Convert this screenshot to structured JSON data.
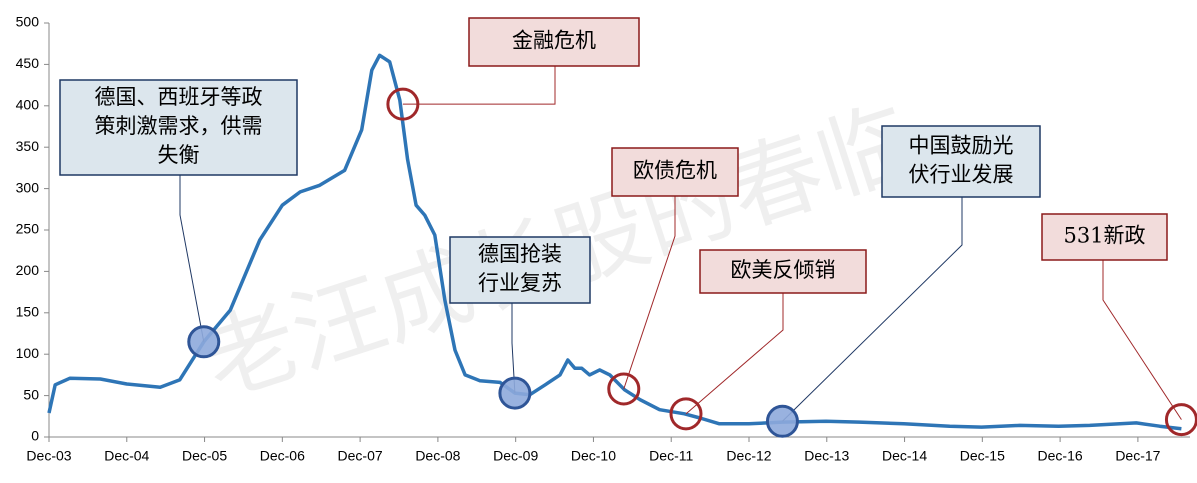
{
  "chart_data": {
    "type": "line",
    "watermark": "老汪成长股的春临",
    "x": [
      2003.92,
      2004.0,
      2004.19,
      2004.58,
      2004.92,
      2005.35,
      2005.6,
      2005.91,
      2006.25,
      2006.63,
      2006.92,
      2007.15,
      2007.4,
      2007.72,
      2007.94,
      2008.07,
      2008.17,
      2008.3,
      2008.43,
      2008.53,
      2008.64,
      2008.75,
      2008.88,
      2009.01,
      2009.14,
      2009.27,
      2009.46,
      2009.72,
      2009.91,
      2010.1,
      2010.3,
      2010.49,
      2010.59,
      2010.68,
      2010.77,
      2010.87,
      2011.0,
      2011.13,
      2011.32,
      2011.52,
      2011.77,
      2012.09,
      2012.29,
      2012.54,
      2012.92,
      2013.35,
      2013.91,
      2014.34,
      2014.91,
      2015.5,
      2015.91,
      2016.4,
      2016.9,
      2017.3,
      2017.9,
      2018.2,
      2018.48
    ],
    "series": [
      {
        "color": "#2e75b6",
        "values": [
          29,
          63,
          71,
          70,
          64,
          60,
          69,
          115,
          153,
          238,
          280,
          296,
          304,
          322,
          371,
          443,
          461,
          453,
          407,
          335,
          280,
          268,
          244,
          165,
          105,
          75,
          68,
          66,
          53,
          51,
          63,
          75,
          93,
          83,
          83,
          75,
          81,
          75,
          57,
          45,
          33,
          28,
          23,
          16,
          16,
          18,
          19,
          18,
          16,
          13,
          12,
          14,
          13,
          14,
          17,
          13,
          10
        ]
      }
    ],
    "xlim": [
      2003.92,
      2018.59
    ],
    "xticks": [
      {
        "value": 2003.92,
        "label": "Dec-03"
      },
      {
        "value": 2004.92,
        "label": "Dec-04"
      },
      {
        "value": 2005.92,
        "label": "Dec-05"
      },
      {
        "value": 2006.92,
        "label": "Dec-06"
      },
      {
        "value": 2007.92,
        "label": "Dec-07"
      },
      {
        "value": 2008.92,
        "label": "Dec-08"
      },
      {
        "value": 2009.92,
        "label": "Dec-09"
      },
      {
        "value": 2010.92,
        "label": "Dec-10"
      },
      {
        "value": 2011.92,
        "label": "Dec-11"
      },
      {
        "value": 2012.92,
        "label": "Dec-12"
      },
      {
        "value": 2013.92,
        "label": "Dec-13"
      },
      {
        "value": 2014.92,
        "label": "Dec-14"
      },
      {
        "value": 2015.92,
        "label": "Dec-15"
      },
      {
        "value": 2016.92,
        "label": "Dec-16"
      },
      {
        "value": 2017.92,
        "label": "Dec-17"
      }
    ],
    "ylim": [
      0,
      500
    ],
    "yticks": [
      0,
      50,
      100,
      150,
      200,
      250,
      300,
      350,
      400,
      450,
      500
    ],
    "annotations": [
      {
        "lines": [
          "德国、西班牙等政",
          "策刺激需求，供需",
          "失衡"
        ],
        "style": "blue",
        "x": 2005.91,
        "y": 115
      },
      {
        "lines": [
          "金融危机"
        ],
        "style": "red",
        "x": 2008.47,
        "y": 402
      },
      {
        "lines": [
          "德国抢装",
          "行业复苏"
        ],
        "style": "blue",
        "x": 2009.91,
        "y": 53
      },
      {
        "lines": [
          "欧债危机"
        ],
        "style": "red",
        "x": 2011.31,
        "y": 58
      },
      {
        "lines": [
          "欧美反倾销"
        ],
        "style": "red",
        "x": 2012.11,
        "y": 28
      },
      {
        "lines": [
          "中国鼓励光",
          "伏行业发展"
        ],
        "style": "blue",
        "x": 2013.35,
        "y": 19
      },
      {
        "lines": [
          "531新政"
        ],
        "style": "red",
        "x": 2018.48,
        "y": 21
      }
    ]
  }
}
